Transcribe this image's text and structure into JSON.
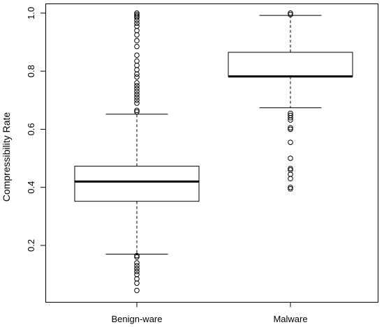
{
  "chart_data": {
    "type": "boxplot",
    "title": "",
    "xlabel": "",
    "ylabel": "Compressibility Rate",
    "ylim": [
      0.0,
      1.0
    ],
    "yticks": [
      0.2,
      0.4,
      0.6,
      0.8,
      1.0
    ],
    "yticklabels": [
      "0.2",
      "0.4",
      "0.6",
      "0.8",
      "1.0"
    ],
    "grid": false,
    "categories": [
      "Benign-ware",
      "Malware"
    ],
    "boxes": [
      {
        "name": "Benign-ware",
        "whisker_low": 0.17,
        "q1": 0.352,
        "median": 0.42,
        "q3": 0.473,
        "whisker_high": 0.652,
        "outliers": [
          0.045,
          0.07,
          0.085,
          0.1,
          0.11,
          0.12,
          0.13,
          0.14,
          0.16,
          0.165,
          0.66,
          0.665,
          0.69,
          0.7,
          0.71,
          0.72,
          0.73,
          0.74,
          0.75,
          0.76,
          0.78,
          0.79,
          0.805,
          0.82,
          0.835,
          0.855,
          0.885,
          0.905,
          0.925,
          0.94,
          0.955,
          0.965,
          0.975,
          0.985,
          0.99,
          0.995,
          1.0
        ]
      },
      {
        "name": "Malware",
        "whisker_low": 0.674,
        "q1": 0.782,
        "median": 0.782,
        "q3": 0.865,
        "whisker_high": 0.992,
        "outliers": [
          0.395,
          0.4,
          0.43,
          0.445,
          0.46,
          0.465,
          0.5,
          0.555,
          0.6,
          0.605,
          0.632,
          0.64,
          0.648,
          0.655,
          0.995,
          1.0
        ]
      }
    ]
  }
}
